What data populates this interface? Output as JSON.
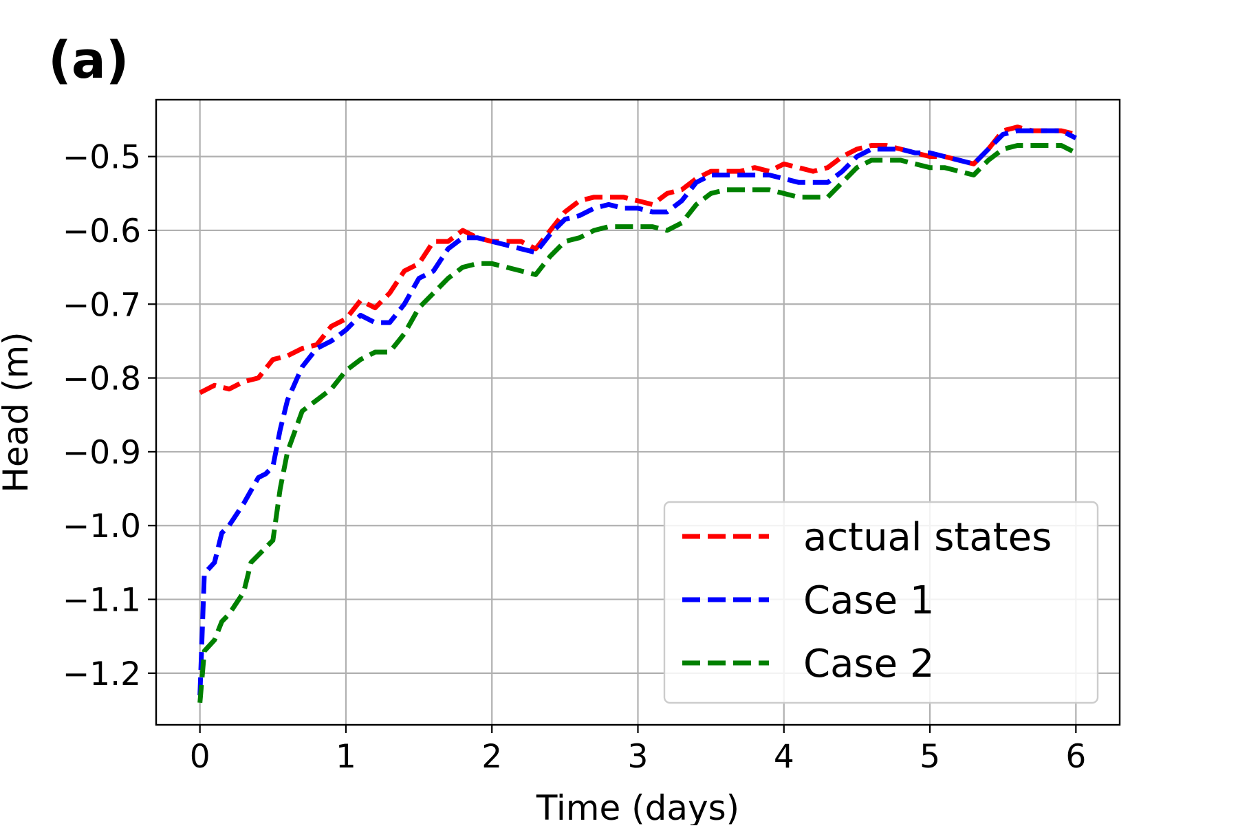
{
  "panel_label": "(a)",
  "chart_data": {
    "type": "line",
    "title": "",
    "xlabel": "Time (days)",
    "ylabel": "Head (m)",
    "xlim": [
      -0.3,
      6.3
    ],
    "ylim": [
      -1.27,
      -0.423
    ],
    "x_ticks": [
      0,
      1,
      2,
      3,
      4,
      5,
      6
    ],
    "x_tick_labels": [
      "0",
      "1",
      "2",
      "3",
      "4",
      "5",
      "6"
    ],
    "y_ticks": [
      -1.2,
      -1.1,
      -1.0,
      -0.9,
      -0.8,
      -0.7,
      -0.6,
      -0.5
    ],
    "y_tick_labels": [
      "−1.2",
      "−1.1",
      "−1.0",
      "−0.9",
      "−0.8",
      "−0.7",
      "−0.6",
      "−0.5"
    ],
    "grid": true,
    "legend": {
      "placement": "lower-right"
    },
    "series": [
      {
        "name": "actual states",
        "color": "#ff0000",
        "style": "dashed",
        "x": [
          0,
          0.1,
          0.2,
          0.3,
          0.4,
          0.5,
          0.6,
          0.7,
          0.8,
          0.9,
          1.0,
          1.1,
          1.2,
          1.3,
          1.4,
          1.5,
          1.6,
          1.7,
          1.8,
          1.9,
          2.0,
          2.1,
          2.2,
          2.3,
          2.4,
          2.5,
          2.6,
          2.7,
          2.8,
          2.9,
          3.0,
          3.1,
          3.2,
          3.3,
          3.4,
          3.5,
          3.6,
          3.7,
          3.8,
          3.9,
          4.0,
          4.1,
          4.2,
          4.3,
          4.4,
          4.5,
          4.6,
          4.7,
          4.8,
          4.9,
          5.0,
          5.1,
          5.2,
          5.3,
          5.4,
          5.5,
          5.6,
          5.7,
          5.8,
          5.9,
          6.0
        ],
        "values": [
          -0.82,
          -0.81,
          -0.815,
          -0.805,
          -0.8,
          -0.775,
          -0.77,
          -0.76,
          -0.755,
          -0.73,
          -0.72,
          -0.695,
          -0.705,
          -0.685,
          -0.655,
          -0.645,
          -0.615,
          -0.615,
          -0.6,
          -0.61,
          -0.615,
          -0.615,
          -0.615,
          -0.625,
          -0.6,
          -0.575,
          -0.56,
          -0.555,
          -0.555,
          -0.555,
          -0.56,
          -0.565,
          -0.55,
          -0.545,
          -0.53,
          -0.52,
          -0.52,
          -0.52,
          -0.515,
          -0.52,
          -0.51,
          -0.515,
          -0.52,
          -0.515,
          -0.5,
          -0.49,
          -0.485,
          -0.485,
          -0.49,
          -0.495,
          -0.5,
          -0.5,
          -0.505,
          -0.51,
          -0.49,
          -0.465,
          -0.46,
          -0.465,
          -0.465,
          -0.465,
          -0.47
        ]
      },
      {
        "name": "Case 1",
        "color": "#0000ff",
        "style": "dashed",
        "x": [
          0,
          0.03,
          0.1,
          0.15,
          0.2,
          0.3,
          0.4,
          0.45,
          0.5,
          0.55,
          0.6,
          0.7,
          0.8,
          0.9,
          1.0,
          1.1,
          1.2,
          1.3,
          1.4,
          1.5,
          1.6,
          1.7,
          1.8,
          1.9,
          2.0,
          2.1,
          2.2,
          2.3,
          2.4,
          2.5,
          2.6,
          2.7,
          2.8,
          2.9,
          3.0,
          3.1,
          3.2,
          3.3,
          3.4,
          3.5,
          3.6,
          3.7,
          3.8,
          3.9,
          4.0,
          4.1,
          4.2,
          4.3,
          4.4,
          4.5,
          4.6,
          4.7,
          4.8,
          4.9,
          5.0,
          5.1,
          5.2,
          5.3,
          5.4,
          5.5,
          5.6,
          5.7,
          5.8,
          5.9,
          6.0
        ],
        "values": [
          -1.23,
          -1.065,
          -1.05,
          -1.01,
          -1.0,
          -0.97,
          -0.935,
          -0.93,
          -0.92,
          -0.87,
          -0.83,
          -0.785,
          -0.76,
          -0.75,
          -0.735,
          -0.715,
          -0.725,
          -0.725,
          -0.7,
          -0.665,
          -0.655,
          -0.625,
          -0.61,
          -0.61,
          -0.615,
          -0.62,
          -0.625,
          -0.63,
          -0.605,
          -0.585,
          -0.58,
          -0.57,
          -0.565,
          -0.57,
          -0.57,
          -0.575,
          -0.575,
          -0.56,
          -0.535,
          -0.525,
          -0.525,
          -0.525,
          -0.525,
          -0.525,
          -0.53,
          -0.535,
          -0.535,
          -0.535,
          -0.52,
          -0.5,
          -0.49,
          -0.49,
          -0.49,
          -0.495,
          -0.495,
          -0.5,
          -0.505,
          -0.51,
          -0.49,
          -0.47,
          -0.465,
          -0.465,
          -0.465,
          -0.465,
          -0.475
        ]
      },
      {
        "name": "Case 2",
        "color": "#008000",
        "style": "dashed",
        "x": [
          0,
          0.03,
          0.1,
          0.15,
          0.2,
          0.3,
          0.35,
          0.4,
          0.5,
          0.55,
          0.6,
          0.7,
          0.8,
          0.9,
          1.0,
          1.1,
          1.2,
          1.3,
          1.4,
          1.5,
          1.6,
          1.7,
          1.8,
          1.9,
          2.0,
          2.1,
          2.2,
          2.3,
          2.4,
          2.5,
          2.6,
          2.7,
          2.8,
          2.9,
          3.0,
          3.1,
          3.2,
          3.3,
          3.4,
          3.5,
          3.6,
          3.7,
          3.8,
          3.9,
          4.0,
          4.1,
          4.2,
          4.3,
          4.4,
          4.5,
          4.6,
          4.7,
          4.8,
          4.9,
          5.0,
          5.1,
          5.2,
          5.3,
          5.4,
          5.5,
          5.6,
          5.7,
          5.8,
          5.9,
          6.0
        ],
        "values": [
          -1.24,
          -1.17,
          -1.155,
          -1.13,
          -1.12,
          -1.09,
          -1.05,
          -1.04,
          -1.02,
          -0.95,
          -0.9,
          -0.845,
          -0.83,
          -0.815,
          -0.79,
          -0.775,
          -0.765,
          -0.765,
          -0.74,
          -0.705,
          -0.685,
          -0.665,
          -0.65,
          -0.645,
          -0.645,
          -0.65,
          -0.655,
          -0.66,
          -0.635,
          -0.615,
          -0.61,
          -0.6,
          -0.595,
          -0.595,
          -0.595,
          -0.595,
          -0.6,
          -0.59,
          -0.565,
          -0.55,
          -0.545,
          -0.545,
          -0.545,
          -0.545,
          -0.55,
          -0.555,
          -0.555,
          -0.555,
          -0.535,
          -0.515,
          -0.505,
          -0.505,
          -0.505,
          -0.51,
          -0.515,
          -0.515,
          -0.52,
          -0.525,
          -0.505,
          -0.49,
          -0.485,
          -0.485,
          -0.485,
          -0.485,
          -0.495
        ]
      }
    ]
  }
}
